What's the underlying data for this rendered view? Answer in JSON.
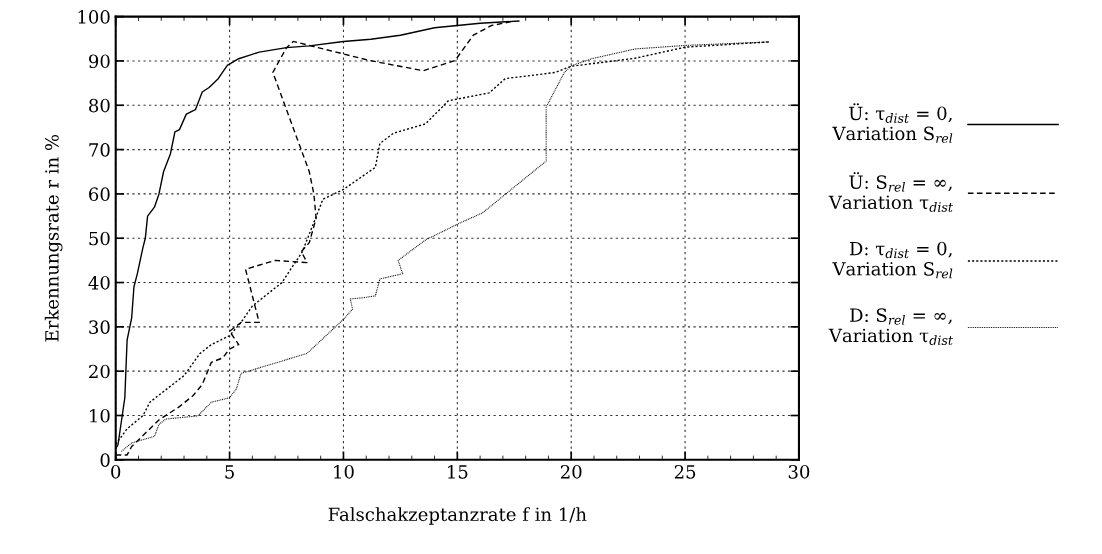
{
  "chart_data": {
    "type": "line",
    "xlabel": "Falschakzeptanzrate f in 1/h",
    "ylabel": "Erkennungsrate r in %",
    "xlim": [
      0,
      30
    ],
    "xticks": [
      0,
      5,
      10,
      15,
      20,
      25,
      30
    ],
    "ylim": [
      0,
      100
    ],
    "yticks": [
      0,
      10,
      20,
      30,
      40,
      50,
      60,
      70,
      80,
      90,
      100
    ],
    "grid": true,
    "legend": "right",
    "marker": "none",
    "series": [
      {
        "name": "Ü: τ$_{dist}$ = 0,\nVariation S$_{rel}$",
        "color": "#000000",
        "line_style": "solid",
        "x": [
          0,
          0.1,
          0.4,
          0.5,
          0.7,
          0.8,
          0.95,
          1.2,
          1.3,
          1.4,
          1.7,
          1.9,
          2.1,
          2.4,
          2.6,
          2.8,
          3.1,
          3.5,
          3.8,
          4.1,
          4.5,
          4.9,
          5.4,
          6.3,
          7.5,
          8.5,
          10,
          11.2,
          12.5,
          14,
          15,
          16,
          17.7
        ],
        "values": [
          2.5,
          3.4,
          14,
          27,
          32,
          39,
          42,
          48,
          50,
          55,
          57,
          60,
          65,
          69,
          74,
          74.5,
          78,
          79,
          83,
          84,
          86,
          89,
          90.5,
          92,
          93,
          93.4,
          94.4,
          94.9,
          95.8,
          97.5,
          98,
          98.5,
          99
        ]
      },
      {
        "name": "Ü: S$_{rel}$ = ∞,\nVariation τ$_{dist}$",
        "color": "#000000",
        "line_style": "dashed",
        "x": [
          0,
          0.5,
          0.7,
          1.4,
          1.9,
          2.8,
          3.4,
          3.8,
          4.2,
          4.7,
          5,
          5.4,
          5,
          5.5,
          6.3,
          5.7,
          7,
          8.4,
          8.15,
          8.5,
          8.8,
          8.7,
          8.5,
          6.9,
          7.5,
          7.8,
          11.15,
          13.5,
          14.9,
          15.7,
          16.5,
          17.5
        ],
        "values": [
          1.1,
          1.1,
          3,
          6.5,
          9,
          12,
          14.5,
          17,
          22,
          23,
          25,
          26,
          29,
          31,
          31,
          43,
          45,
          44.5,
          47,
          49,
          54.5,
          60,
          65,
          87.4,
          93,
          94.4,
          90.1,
          87.8,
          90.1,
          95.8,
          98,
          99
        ]
      },
      {
        "name": "D: τ$_{dist}$ = 0,\nVariation S$_{rel}$",
        "color": "#000000",
        "line_style": "dotted",
        "x": [
          0,
          0.5,
          1.2,
          1.5,
          2.5,
          3,
          3.7,
          4.2,
          5,
          5.5,
          6,
          7.3,
          8.2,
          9.1,
          10,
          11.4,
          11.6,
          12.2,
          13.6,
          14.3,
          14.6,
          16.4,
          17.1,
          19.3,
          20,
          22.8,
          25,
          28.7
        ],
        "values": [
          3.5,
          7,
          10,
          13,
          17,
          19,
          24,
          26,
          28,
          31,
          34.7,
          40,
          47,
          58.8,
          61,
          66,
          71.4,
          73.7,
          75.8,
          79.4,
          81,
          82.8,
          86,
          87.4,
          88.8,
          90.6,
          93.1,
          94.3
        ]
      },
      {
        "name": "D: S$_{rel}$ = ∞,\nVariation τ$_{dist}$",
        "color": "#000000",
        "line_style": "dotted",
        "x": [
          0.25,
          0.7,
          1.7,
          1.9,
          2.2,
          3.6,
          4.2,
          5,
          5.3,
          5.5,
          8.4,
          10,
          10.4,
          10.3,
          10.9,
          11.4,
          11.6,
          12.6,
          12.4,
          13.6,
          15.1,
          16.1,
          18.9,
          18.9,
          19.7,
          20,
          20.9,
          22.8,
          25,
          28.7
        ],
        "values": [
          1.9,
          3.8,
          5.3,
          8,
          9.2,
          9.9,
          13,
          14,
          16,
          19.5,
          24,
          31.7,
          34,
          36.3,
          36.6,
          37,
          40.8,
          42,
          45,
          49.6,
          53.4,
          55.7,
          67.4,
          79.6,
          87.4,
          88.9,
          90.5,
          92.7,
          93.5,
          94.3
        ]
      }
    ]
  }
}
